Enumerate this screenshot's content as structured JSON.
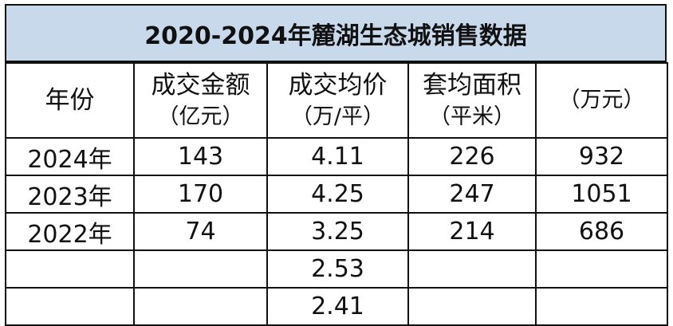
{
  "title": "2020-2024年麓湖生态城销售数据",
  "headers": [
    {
      "main": "年份",
      "unit": ""
    },
    {
      "main": "成交金额",
      "unit": "（亿元）"
    },
    {
      "main": "成交均价",
      "unit": "（万/平）"
    },
    {
      "main": "套均面积",
      "unit": "（平米）"
    },
    {
      "main": "",
      "unit": "（万元）"
    }
  ],
  "rows": [
    [
      "2024年",
      "143",
      "4.11",
      "226",
      "932"
    ],
    [
      "2023年",
      "170",
      "4.25",
      "247",
      "1051"
    ],
    [
      "2022年",
      "74",
      "3.25",
      "214",
      "686"
    ],
    [
      "",
      "",
      "2.53",
      "",
      ""
    ],
    [
      "",
      "",
      "2.41",
      "",
      ""
    ]
  ],
  "colors": {
    "title_background": "#c9d9ec",
    "border": "#111111"
  }
}
